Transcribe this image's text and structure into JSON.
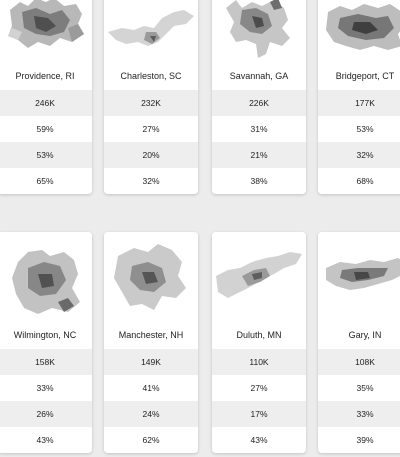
{
  "cards": [
    {
      "city": "Providence, RI",
      "stats": [
        "246K",
        "59%",
        "53%",
        "65%"
      ],
      "map_icon": "city-map-icon"
    },
    {
      "city": "Charleston, SC",
      "stats": [
        "232K",
        "27%",
        "20%",
        "32%"
      ],
      "map_icon": "city-map-icon"
    },
    {
      "city": "Savannah, GA",
      "stats": [
        "226K",
        "31%",
        "21%",
        "38%"
      ],
      "map_icon": "city-map-icon"
    },
    {
      "city": "Bridgeport, CT",
      "stats": [
        "177K",
        "53%",
        "32%",
        "68%"
      ],
      "map_icon": "city-map-icon"
    },
    {
      "city": "Wilmington, NC",
      "stats": [
        "158K",
        "33%",
        "26%",
        "43%"
      ],
      "map_icon": "city-map-icon"
    },
    {
      "city": "Manchester, NH",
      "stats": [
        "149K",
        "41%",
        "24%",
        "62%"
      ],
      "map_icon": "city-map-icon"
    },
    {
      "city": "Duluth, MN",
      "stats": [
        "110K",
        "27%",
        "17%",
        "43%"
      ],
      "map_icon": "city-map-icon"
    },
    {
      "city": "Gary, IN",
      "stats": [
        "108K",
        "35%",
        "33%",
        "39%"
      ],
      "map_icon": "city-map-icon"
    }
  ],
  "colors": {
    "background": "#ececec",
    "card": "#ffffff",
    "shaded_row": "#eeeeee",
    "map_light": "#d6d6d6",
    "map_mid": "#9a9a9a",
    "map_dark": "#4a4a4a"
  }
}
